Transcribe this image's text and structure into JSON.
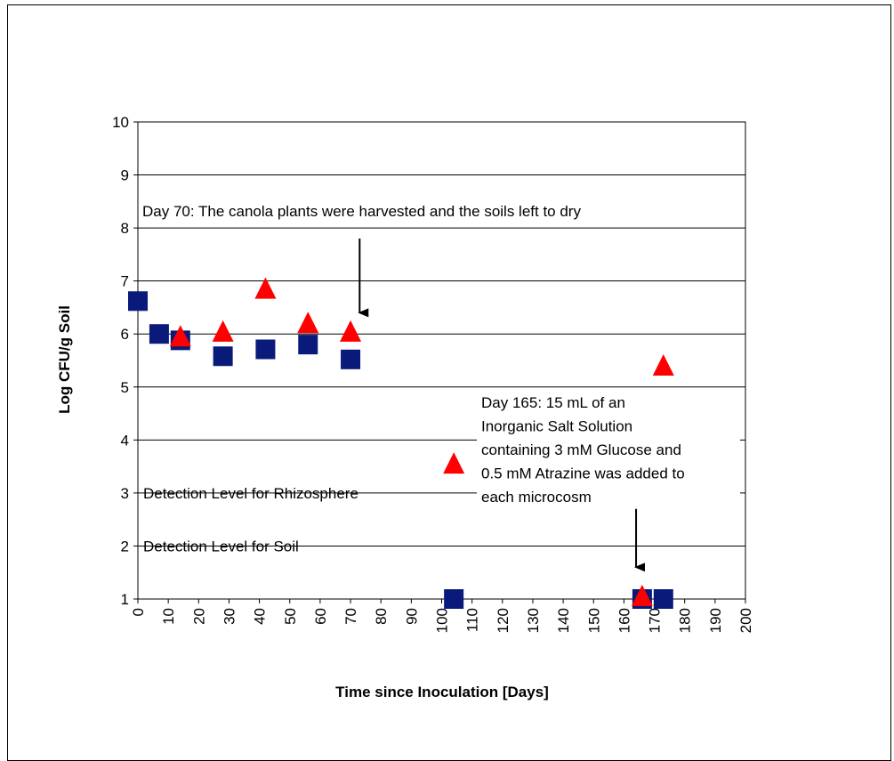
{
  "chart_data": {
    "type": "scatter",
    "title": "",
    "xlabel": "Time since Inoculation [Days]",
    "ylabel": "Log CFU/g Soil",
    "xlim": [
      0,
      200
    ],
    "ylim": [
      1,
      10
    ],
    "xticks": [
      0,
      10,
      20,
      30,
      40,
      50,
      60,
      70,
      80,
      90,
      100,
      110,
      120,
      130,
      140,
      150,
      160,
      170,
      180,
      190,
      200
    ],
    "yticks": [
      1,
      2,
      3,
      4,
      5,
      6,
      7,
      8,
      9,
      10
    ],
    "grid": "horizontal",
    "legend": "none",
    "series": [
      {
        "marker": "square",
        "color": "#0a1a7a",
        "points": [
          {
            "x": 0,
            "y": 6.62
          },
          {
            "x": 7,
            "y": 6.0
          },
          {
            "x": 14,
            "y": 5.88
          },
          {
            "x": 28,
            "y": 5.58
          },
          {
            "x": 42,
            "y": 5.71
          },
          {
            "x": 56,
            "y": 5.8
          },
          {
            "x": 70,
            "y": 5.52
          },
          {
            "x": 104,
            "y": 1.0
          },
          {
            "x": 166,
            "y": 1.0
          },
          {
            "x": 173,
            "y": 1.0
          }
        ]
      },
      {
        "marker": "triangle",
        "color": "#ff0000",
        "points": [
          {
            "x": 14,
            "y": 5.95
          },
          {
            "x": 28,
            "y": 6.04
          },
          {
            "x": 42,
            "y": 6.85
          },
          {
            "x": 56,
            "y": 6.2
          },
          {
            "x": 70,
            "y": 6.04
          },
          {
            "x": 104,
            "y": 3.55
          },
          {
            "x": 166,
            "y": 1.05
          },
          {
            "x": 173,
            "y": 5.4
          }
        ]
      }
    ],
    "reference_labels": [
      {
        "text": "Detection Level for Rhizosphere",
        "y": 3
      },
      {
        "text": "Detection Level for Soil",
        "y": 2
      }
    ],
    "annotations": [
      {
        "lines": [
          "Day 70:  The canola plants were harvested and the soils left to dry"
        ],
        "arrow_x": 73,
        "arrow_from_y": 7.8,
        "arrow_to_y": 6.4
      },
      {
        "lines": [
          "Day 165:  15 mL of an",
          "Inorganic Salt Solution",
          "containing 3 mM Glucose and",
          "0.5 mM Atrazine was added to",
          "each microcosm"
        ],
        "arrow_x": 164,
        "arrow_from_y": 2.7,
        "arrow_to_y": 1.6
      }
    ]
  }
}
